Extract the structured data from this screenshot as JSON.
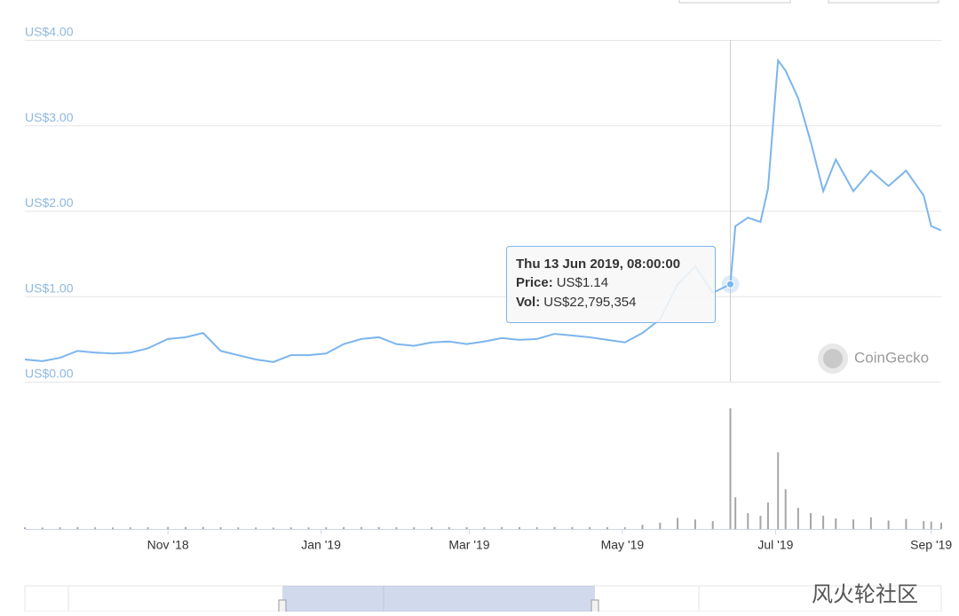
{
  "chart_data": {
    "type": "line",
    "x": [
      "2018-09-05",
      "2018-09-12",
      "2018-09-19",
      "2018-09-26",
      "2018-10-03",
      "2018-10-10",
      "2018-10-17",
      "2018-10-24",
      "2018-11-01",
      "2018-11-08",
      "2018-11-15",
      "2018-11-22",
      "2018-11-29",
      "2018-12-06",
      "2018-12-13",
      "2018-12-20",
      "2018-12-27",
      "2019-01-03",
      "2019-01-10",
      "2019-01-17",
      "2019-01-24",
      "2019-01-31",
      "2019-02-07",
      "2019-02-14",
      "2019-02-21",
      "2019-02-28",
      "2019-03-07",
      "2019-03-14",
      "2019-03-21",
      "2019-03-28",
      "2019-04-04",
      "2019-04-11",
      "2019-04-18",
      "2019-04-25",
      "2019-05-02",
      "2019-05-09",
      "2019-05-16",
      "2019-05-23",
      "2019-05-30",
      "2019-06-06",
      "2019-06-13",
      "2019-06-15",
      "2019-06-20",
      "2019-06-25",
      "2019-06-28",
      "2019-07-02",
      "2019-07-05",
      "2019-07-10",
      "2019-07-15",
      "2019-07-20",
      "2019-07-25",
      "2019-08-01",
      "2019-08-08",
      "2019-08-15",
      "2019-08-22",
      "2019-08-29",
      "2019-09-01",
      "2019-09-05"
    ],
    "series": [
      {
        "color": "#7cb5ec",
        "values": [
          0.26,
          0.24,
          0.28,
          0.36,
          0.34,
          0.33,
          0.34,
          0.39,
          0.5,
          0.52,
          0.57,
          0.36,
          0.31,
          0.26,
          0.23,
          0.31,
          0.31,
          0.33,
          0.44,
          0.5,
          0.52,
          0.44,
          0.42,
          0.46,
          0.47,
          0.44,
          0.47,
          0.51,
          0.49,
          0.5,
          0.56,
          0.54,
          0.52,
          0.49,
          0.46,
          0.57,
          0.73,
          1.14,
          1.35,
          1.04,
          1.14,
          1.82,
          1.92,
          1.87,
          2.26,
          3.76,
          3.64,
          3.32,
          2.81,
          2.23,
          2.6,
          2.23,
          2.47,
          2.29,
          2.47,
          2.18,
          1.82,
          1.77
        ]
      },
      {
        "color": "#a6a6a6",
        "values": [
          300000,
          280000,
          320000,
          350000,
          300000,
          290000,
          310000,
          330000,
          380000,
          360000,
          400000,
          340000,
          300000,
          280000,
          260000,
          300000,
          290000,
          310000,
          350000,
          370000,
          360000,
          330000,
          320000,
          340000,
          350000,
          330000,
          340000,
          360000,
          350000,
          340000,
          380000,
          370000,
          360000,
          350000,
          340000,
          800000,
          1200000,
          2100000,
          1800000,
          1500000,
          22795354,
          6000000,
          3000000,
          2500000,
          5000000,
          14500000,
          7500000,
          4000000,
          3000000,
          2500000,
          2000000,
          1800000,
          2200000,
          1600000,
          1900000,
          1500000,
          1400000,
          1200000
        ]
      }
    ],
    "xlim": [
      "2018-09-05",
      "2019-09-05"
    ],
    "xticks": [
      {
        "value": "2018-11-01",
        "label": "Nov '18"
      },
      {
        "value": "2019-01-01",
        "label": "Jan '19"
      },
      {
        "value": "2019-03-01",
        "label": "Mar '19"
      },
      {
        "value": "2019-05-01",
        "label": "May '19"
      },
      {
        "value": "2019-07-01",
        "label": "Jul '19"
      },
      {
        "value": "2019-09-01",
        "label": "Sep '19"
      }
    ],
    "ylim": [
      0,
      4
    ],
    "yticks": [
      {
        "value": 0,
        "label": "US$0.00"
      },
      {
        "value": 1,
        "label": "US$1.00"
      },
      {
        "value": 2,
        "label": "US$2.00"
      },
      {
        "value": 3,
        "label": "US$3.00"
      },
      {
        "value": 4,
        "label": "US$4.00"
      }
    ],
    "grid": true,
    "tooltip": {
      "index": 40,
      "title": "Thu 13 Jun 2019, 08:00:00",
      "price_label": "Price:",
      "price": "US$1.14",
      "vol_label": "Vol:",
      "vol": "US$22,795,354"
    },
    "watermark": "CoinGecko",
    "footer": "风火轮社区"
  }
}
